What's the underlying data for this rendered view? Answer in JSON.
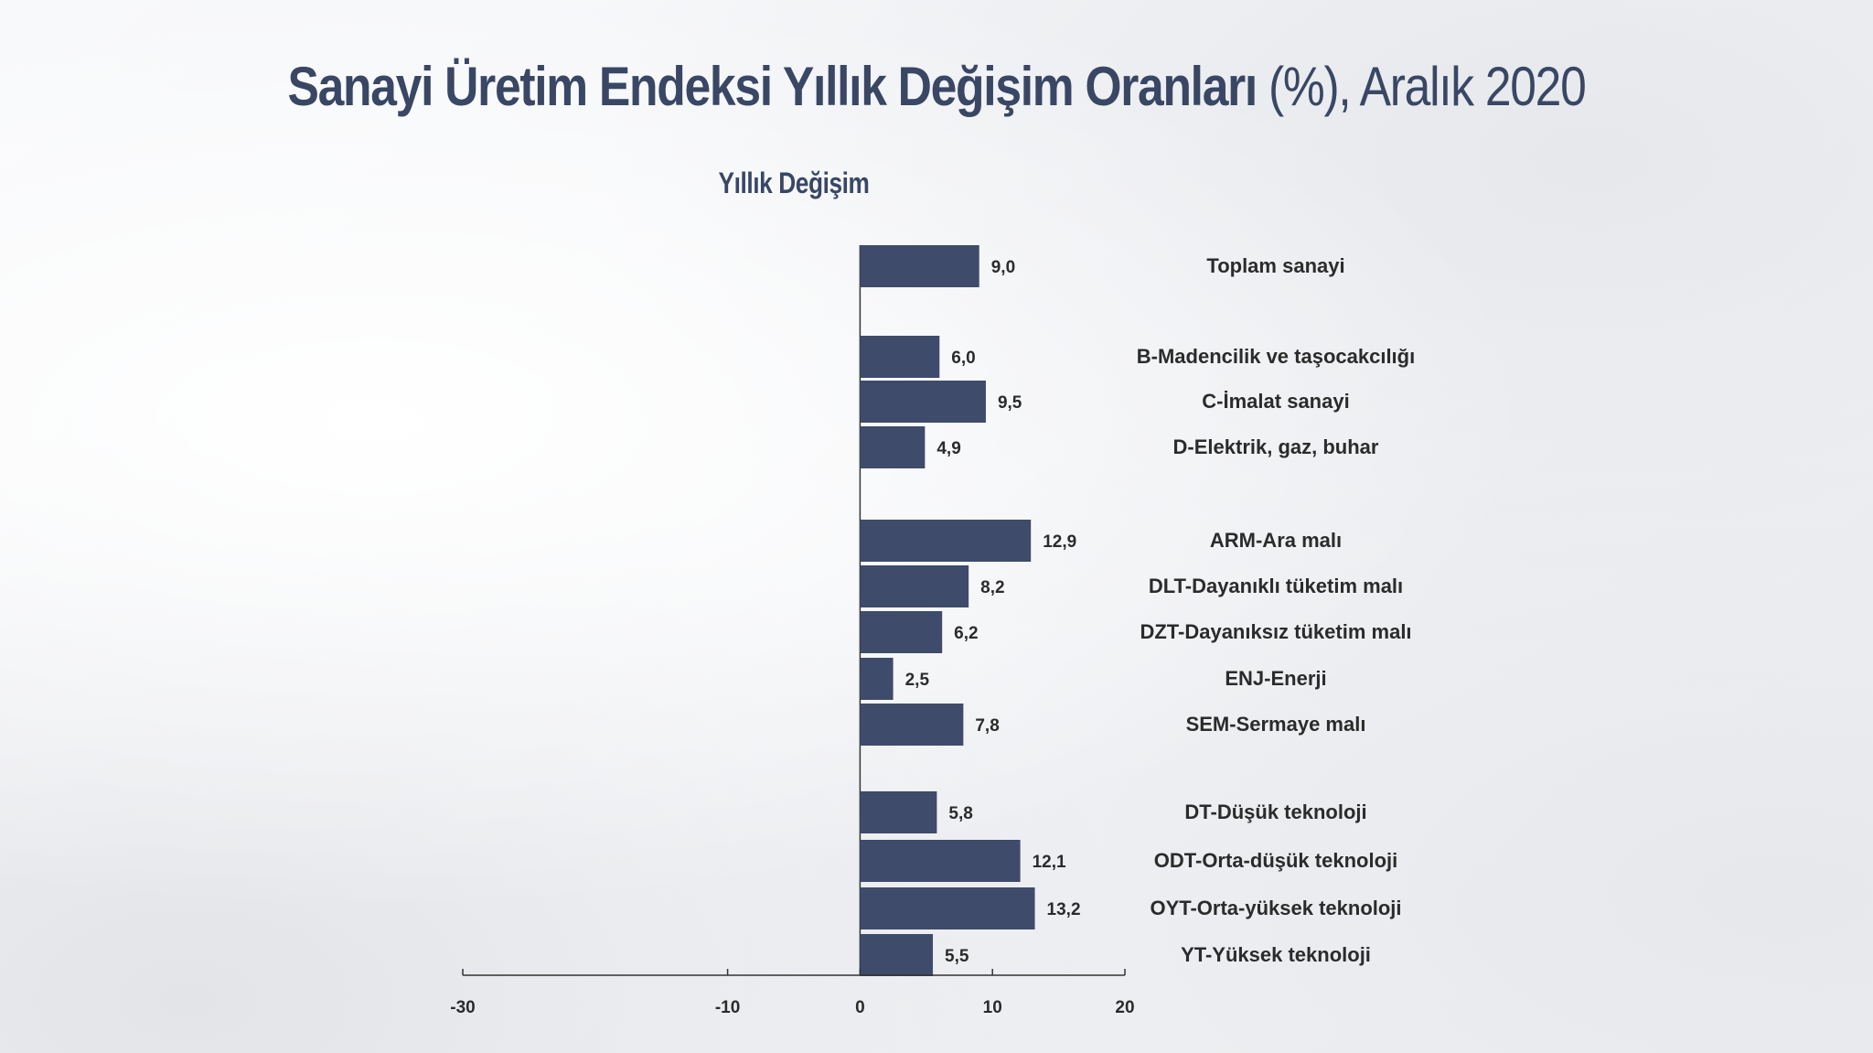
{
  "chart_data": {
    "type": "bar",
    "orientation": "horizontal",
    "title_bold": "Sanayi Üretim Endeksi Yıllık Değişim Oranları",
    "title_light": " (%), Aralık 2020",
    "series_title": "Yıllık Değişim",
    "colors": {
      "bar": "#3e4b6b",
      "title": "#394765"
    },
    "xlim": [
      -30,
      20
    ],
    "xticks": [
      -30,
      -10,
      0,
      10,
      20
    ],
    "xtick_labels": [
      "-30",
      "-10",
      "0",
      "10",
      "20"
    ],
    "categories": [
      "Toplam sanayi",
      "B-Madencilik ve taşocakcılığı",
      "C-İmalat sanayi",
      "D-Elektrik, gaz, buhar",
      "ARM-Ara malı",
      "DLT-Dayanıklı tüketim malı",
      "DZT-Dayanıksız tüketim malı",
      "ENJ-Enerji",
      "SEM-Sermaye malı",
      "DT-Düşük teknoloji",
      "ODT-Orta-düşük teknoloji",
      "OYT-Orta-yüksek teknoloji",
      "YT-Yüksek teknoloji"
    ],
    "values": [
      9.0,
      6.0,
      9.5,
      4.9,
      12.9,
      8.2,
      6.2,
      2.5,
      7.8,
      5.8,
      12.1,
      13.2,
      5.5
    ],
    "value_labels": [
      "9,0",
      "6,0",
      "9,5",
      "4,9",
      "12,9",
      "8,2",
      "6,2",
      "2,5",
      "7,8",
      "5,8",
      "12,1",
      "13,2",
      "5,5"
    ],
    "groups": [
      [
        0
      ],
      [
        1,
        2,
        3
      ],
      [
        4,
        5,
        6,
        7,
        8
      ],
      [
        9,
        10,
        11,
        12
      ]
    ]
  }
}
